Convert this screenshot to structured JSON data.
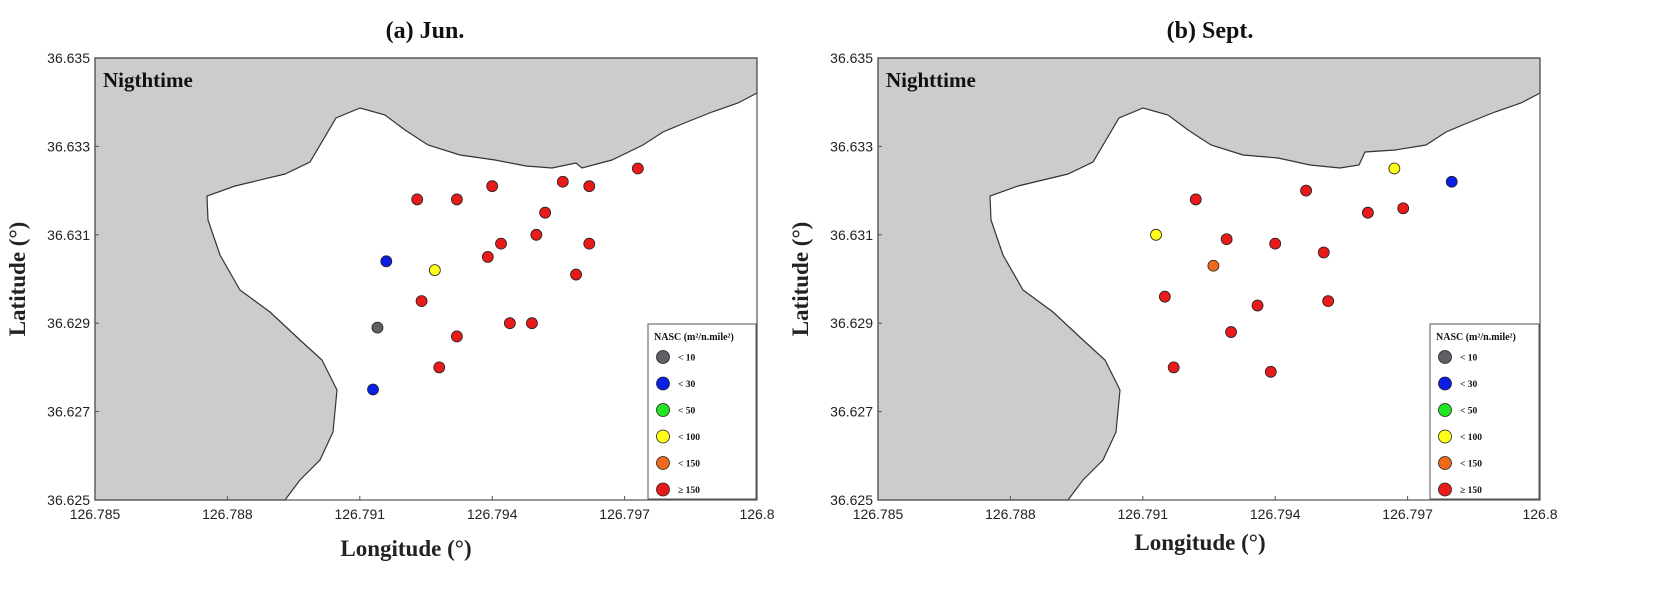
{
  "chart_data": [
    {
      "type": "scatter",
      "title": "(a) Jun.",
      "annotation": "Nigthtime",
      "xlabel": "Longitude (°)",
      "ylabel": "Latitude (°)",
      "xlim": [
        126.785,
        126.8
      ],
      "ylim": [
        36.625,
        36.635
      ],
      "xticks": [
        "126.785",
        "126.788",
        "126.791",
        "126.794",
        "126.797",
        "126.8"
      ],
      "yticks": [
        "36.625",
        "36.627",
        "36.629",
        "36.631",
        "36.633",
        "36.635"
      ],
      "legend": {
        "title": "NASC (m²/n.mile²)",
        "placement": "bottom-right",
        "entries": [
          {
            "label": "< 10",
            "color": "#5f5f66"
          },
          {
            "label": "< 30",
            "color": "#0a1ee6"
          },
          {
            "label": "< 50",
            "color": "#22e622"
          },
          {
            "label": "< 100",
            "color": "#ffff1a"
          },
          {
            "label": "< 150",
            "color": "#ee6a1a"
          },
          {
            "label": "≥ 150",
            "color": "#e81a1a"
          }
        ]
      },
      "points": [
        {
          "x": 126.7923,
          "y": 36.6318,
          "class": "≥ 150"
        },
        {
          "x": 126.7932,
          "y": 36.6318,
          "class": "≥ 150"
        },
        {
          "x": 126.794,
          "y": 36.6321,
          "class": "≥ 150"
        },
        {
          "x": 126.7956,
          "y": 36.6322,
          "class": "≥ 150"
        },
        {
          "x": 126.7962,
          "y": 36.6321,
          "class": "≥ 150"
        },
        {
          "x": 126.7973,
          "y": 36.6325,
          "class": "≥ 150"
        },
        {
          "x": 126.7952,
          "y": 36.6315,
          "class": "≥ 150"
        },
        {
          "x": 126.795,
          "y": 36.631,
          "class": "≥ 150"
        },
        {
          "x": 126.7942,
          "y": 36.6308,
          "class": "≥ 150"
        },
        {
          "x": 126.7939,
          "y": 36.6305,
          "class": "≥ 150"
        },
        {
          "x": 126.7962,
          "y": 36.6308,
          "class": "≥ 150"
        },
        {
          "x": 126.7959,
          "y": 36.6301,
          "class": "≥ 150"
        },
        {
          "x": 126.7924,
          "y": 36.6295,
          "class": "≥ 150"
        },
        {
          "x": 126.7944,
          "y": 36.629,
          "class": "≥ 150"
        },
        {
          "x": 126.7949,
          "y": 36.629,
          "class": "≥ 150"
        },
        {
          "x": 126.7932,
          "y": 36.6287,
          "class": "≥ 150"
        },
        {
          "x": 126.7928,
          "y": 36.628,
          "class": "≥ 150"
        },
        {
          "x": 126.7927,
          "y": 36.6302,
          "class": "< 100"
        },
        {
          "x": 126.7916,
          "y": 36.6304,
          "class": "< 30"
        },
        {
          "x": 126.7913,
          "y": 36.6275,
          "class": "< 30"
        },
        {
          "x": 126.7914,
          "y": 36.6289,
          "class": "< 10"
        }
      ]
    },
    {
      "type": "scatter",
      "title": "(b) Sept.",
      "annotation": "Nighttime",
      "xlabel": "Longitude (°)",
      "ylabel": "Latitude (°)",
      "xlim": [
        126.785,
        126.8
      ],
      "ylim": [
        36.625,
        36.635
      ],
      "xticks": [
        "126.785",
        "126.788",
        "126.791",
        "126.794",
        "126.797",
        "126.8"
      ],
      "yticks": [
        "36.625",
        "36.627",
        "36.629",
        "36.631",
        "36.633",
        "36.635"
      ],
      "legend": {
        "title": "NASC (m²/n.mile²)",
        "placement": "bottom-right",
        "entries": [
          {
            "label": "< 10",
            "color": "#5f5f66"
          },
          {
            "label": "< 30",
            "color": "#0a1ee6"
          },
          {
            "label": "< 50",
            "color": "#22e622"
          },
          {
            "label": "< 100",
            "color": "#ffff1a"
          },
          {
            "label": "< 150",
            "color": "#ee6a1a"
          },
          {
            "label": "≥ 150",
            "color": "#e81a1a"
          }
        ]
      },
      "points": [
        {
          "x": 126.7922,
          "y": 36.6318,
          "class": "≥ 150"
        },
        {
          "x": 126.7947,
          "y": 36.632,
          "class": "≥ 150"
        },
        {
          "x": 126.7961,
          "y": 36.6315,
          "class": "≥ 150"
        },
        {
          "x": 126.7969,
          "y": 36.6316,
          "class": "≥ 150"
        },
        {
          "x": 126.7929,
          "y": 36.6309,
          "class": "≥ 150"
        },
        {
          "x": 126.794,
          "y": 36.6308,
          "class": "≥ 150"
        },
        {
          "x": 126.7951,
          "y": 36.6306,
          "class": "≥ 150"
        },
        {
          "x": 126.7915,
          "y": 36.6296,
          "class": "≥ 150"
        },
        {
          "x": 126.7936,
          "y": 36.6294,
          "class": "≥ 150"
        },
        {
          "x": 126.7952,
          "y": 36.6295,
          "class": "≥ 150"
        },
        {
          "x": 126.793,
          "y": 36.6288,
          "class": "≥ 150"
        },
        {
          "x": 126.7917,
          "y": 36.628,
          "class": "≥ 150"
        },
        {
          "x": 126.7939,
          "y": 36.6279,
          "class": "≥ 150"
        },
        {
          "x": 126.7967,
          "y": 36.6325,
          "class": "< 100"
        },
        {
          "x": 126.7913,
          "y": 36.631,
          "class": "< 100"
        },
        {
          "x": 126.7926,
          "y": 36.6303,
          "class": "< 150"
        },
        {
          "x": 126.798,
          "y": 36.6322,
          "class": "< 30"
        }
      ]
    }
  ]
}
